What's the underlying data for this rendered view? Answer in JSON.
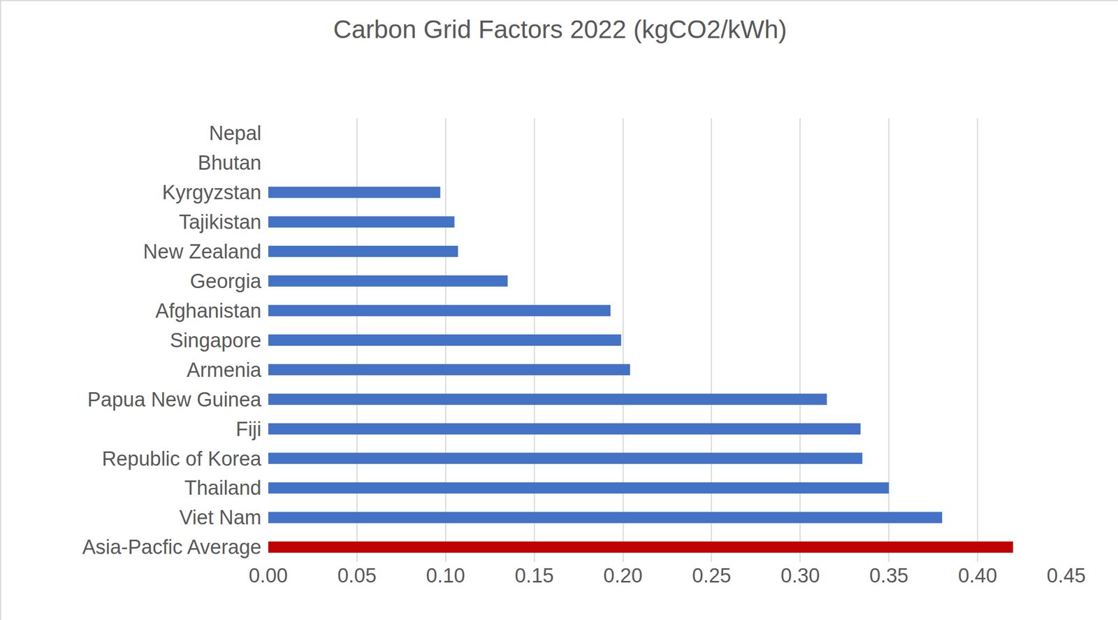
{
  "chart_data": {
    "type": "bar",
    "orientation": "horizontal",
    "title": "Carbon Grid Factors 2022 (kgCO2/kWh)",
    "categories": [
      "Nepal",
      "Bhutan",
      "Kyrgyzstan",
      "Tajikistan",
      "New Zealand",
      "Georgia",
      "Afghanistan",
      "Singapore",
      "Armenia",
      "Papua New Guinea",
      "Fiji",
      "Republic of Korea",
      "Thailand",
      "Viet Nam",
      "Asia-Pacfic Average"
    ],
    "values": [
      0,
      0,
      0.097,
      0.105,
      0.107,
      0.135,
      0.193,
      0.199,
      0.204,
      0.315,
      0.334,
      0.335,
      0.35,
      0.38,
      0.42
    ],
    "colors": [
      "#4472c4",
      "#4472c4",
      "#4472c4",
      "#4472c4",
      "#4472c4",
      "#4472c4",
      "#4472c4",
      "#4472c4",
      "#4472c4",
      "#4472c4",
      "#4472c4",
      "#4472c4",
      "#4472c4",
      "#4472c4",
      "#c00000"
    ],
    "xlim": [
      0,
      0.45
    ],
    "xticks": [
      {
        "value": 0,
        "label": "0.00"
      },
      {
        "value": 0.05,
        "label": "0.05"
      },
      {
        "value": 0.1,
        "label": "0.10"
      },
      {
        "value": 0.15,
        "label": "0.15"
      },
      {
        "value": 0.2,
        "label": "0.20"
      },
      {
        "value": 0.25,
        "label": "0.25"
      },
      {
        "value": 0.3,
        "label": "0.30"
      },
      {
        "value": 0.35,
        "label": "0.35"
      },
      {
        "value": 0.4,
        "label": "0.40"
      },
      {
        "value": 0.45,
        "label": "0.45"
      }
    ],
    "grid": true
  }
}
